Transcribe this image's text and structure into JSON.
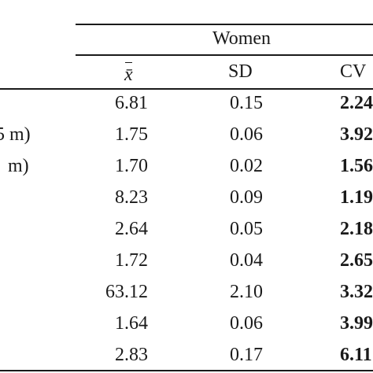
{
  "table": {
    "group_header": "Women",
    "columns": {
      "mean": "x̄",
      "sd": "SD",
      "cv": "CV"
    },
    "rows": [
      {
        "label": "",
        "mean": "6.81",
        "sd": "0.15",
        "cv": "2.24"
      },
      {
        "label": "5 m)",
        "mean": "1.75",
        "sd": "0.06",
        "cv": "3.92"
      },
      {
        "label": "m)",
        "mean": "1.70",
        "sd": "0.02",
        "cv": "1.56"
      },
      {
        "label": "",
        "mean": "8.23",
        "sd": "0.09",
        "cv": "1.19"
      },
      {
        "label": "",
        "mean": "2.64",
        "sd": "0.05",
        "cv": "2.18"
      },
      {
        "label": "",
        "mean": "1.72",
        "sd": "0.04",
        "cv": "2.65"
      },
      {
        "label": "",
        "mean": "63.12",
        "sd": "2.10",
        "cv": "3.32"
      },
      {
        "label": "",
        "mean": "1.64",
        "sd": "0.06",
        "cv": "3.99"
      },
      {
        "label": "",
        "mean": "2.83",
        "sd": "0.17",
        "cv": "6.11"
      }
    ]
  }
}
